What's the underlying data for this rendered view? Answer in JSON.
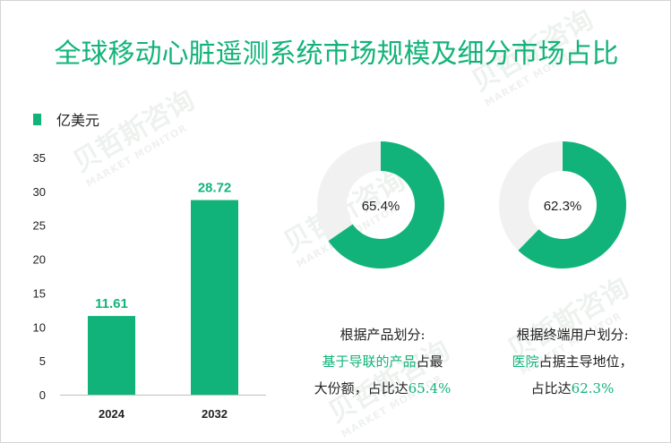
{
  "title": "全球移动心脏遥测系统市场规模及细分市场占比",
  "legend": {
    "label": "亿美元",
    "color": "#12b37a"
  },
  "watermark": {
    "cn": "贝哲斯咨询",
    "en": "MARKET MONITOR"
  },
  "chart_data": [
    {
      "type": "bar",
      "categories": [
        "2024",
        "2032"
      ],
      "values": [
        11.61,
        28.72
      ],
      "value_labels": [
        "11.61",
        "28.72"
      ],
      "ylim": [
        0,
        35
      ],
      "yticks": [
        0,
        5,
        10,
        15,
        20,
        25,
        30,
        35
      ],
      "ytick_labels": [
        "0",
        "5",
        "10",
        "15",
        "20",
        "25",
        "30",
        "35"
      ],
      "ylabel": "亿美元",
      "color": "#12b37a"
    },
    {
      "type": "pie",
      "style": "donut",
      "value": 65.4,
      "label": "65.4%",
      "color": "#12b37a",
      "rest_color": "#f1f1f1"
    },
    {
      "type": "pie",
      "style": "donut",
      "value": 62.3,
      "label": "62.3%",
      "color": "#12b37a",
      "rest_color": "#f1f1f1"
    }
  ],
  "captions": {
    "product": {
      "line1": "根据产品划分:",
      "highlight": "基于导联的产品",
      "line2_rest": "占最",
      "line3_prefix": "大份额，占比达",
      "line3_value": "65.4%"
    },
    "user": {
      "line1": "根据终端用户划分:",
      "highlight": "医院",
      "line2_rest": "占据主导地位，",
      "line3_prefix": "占比达",
      "line3_value": "62.3%"
    }
  }
}
